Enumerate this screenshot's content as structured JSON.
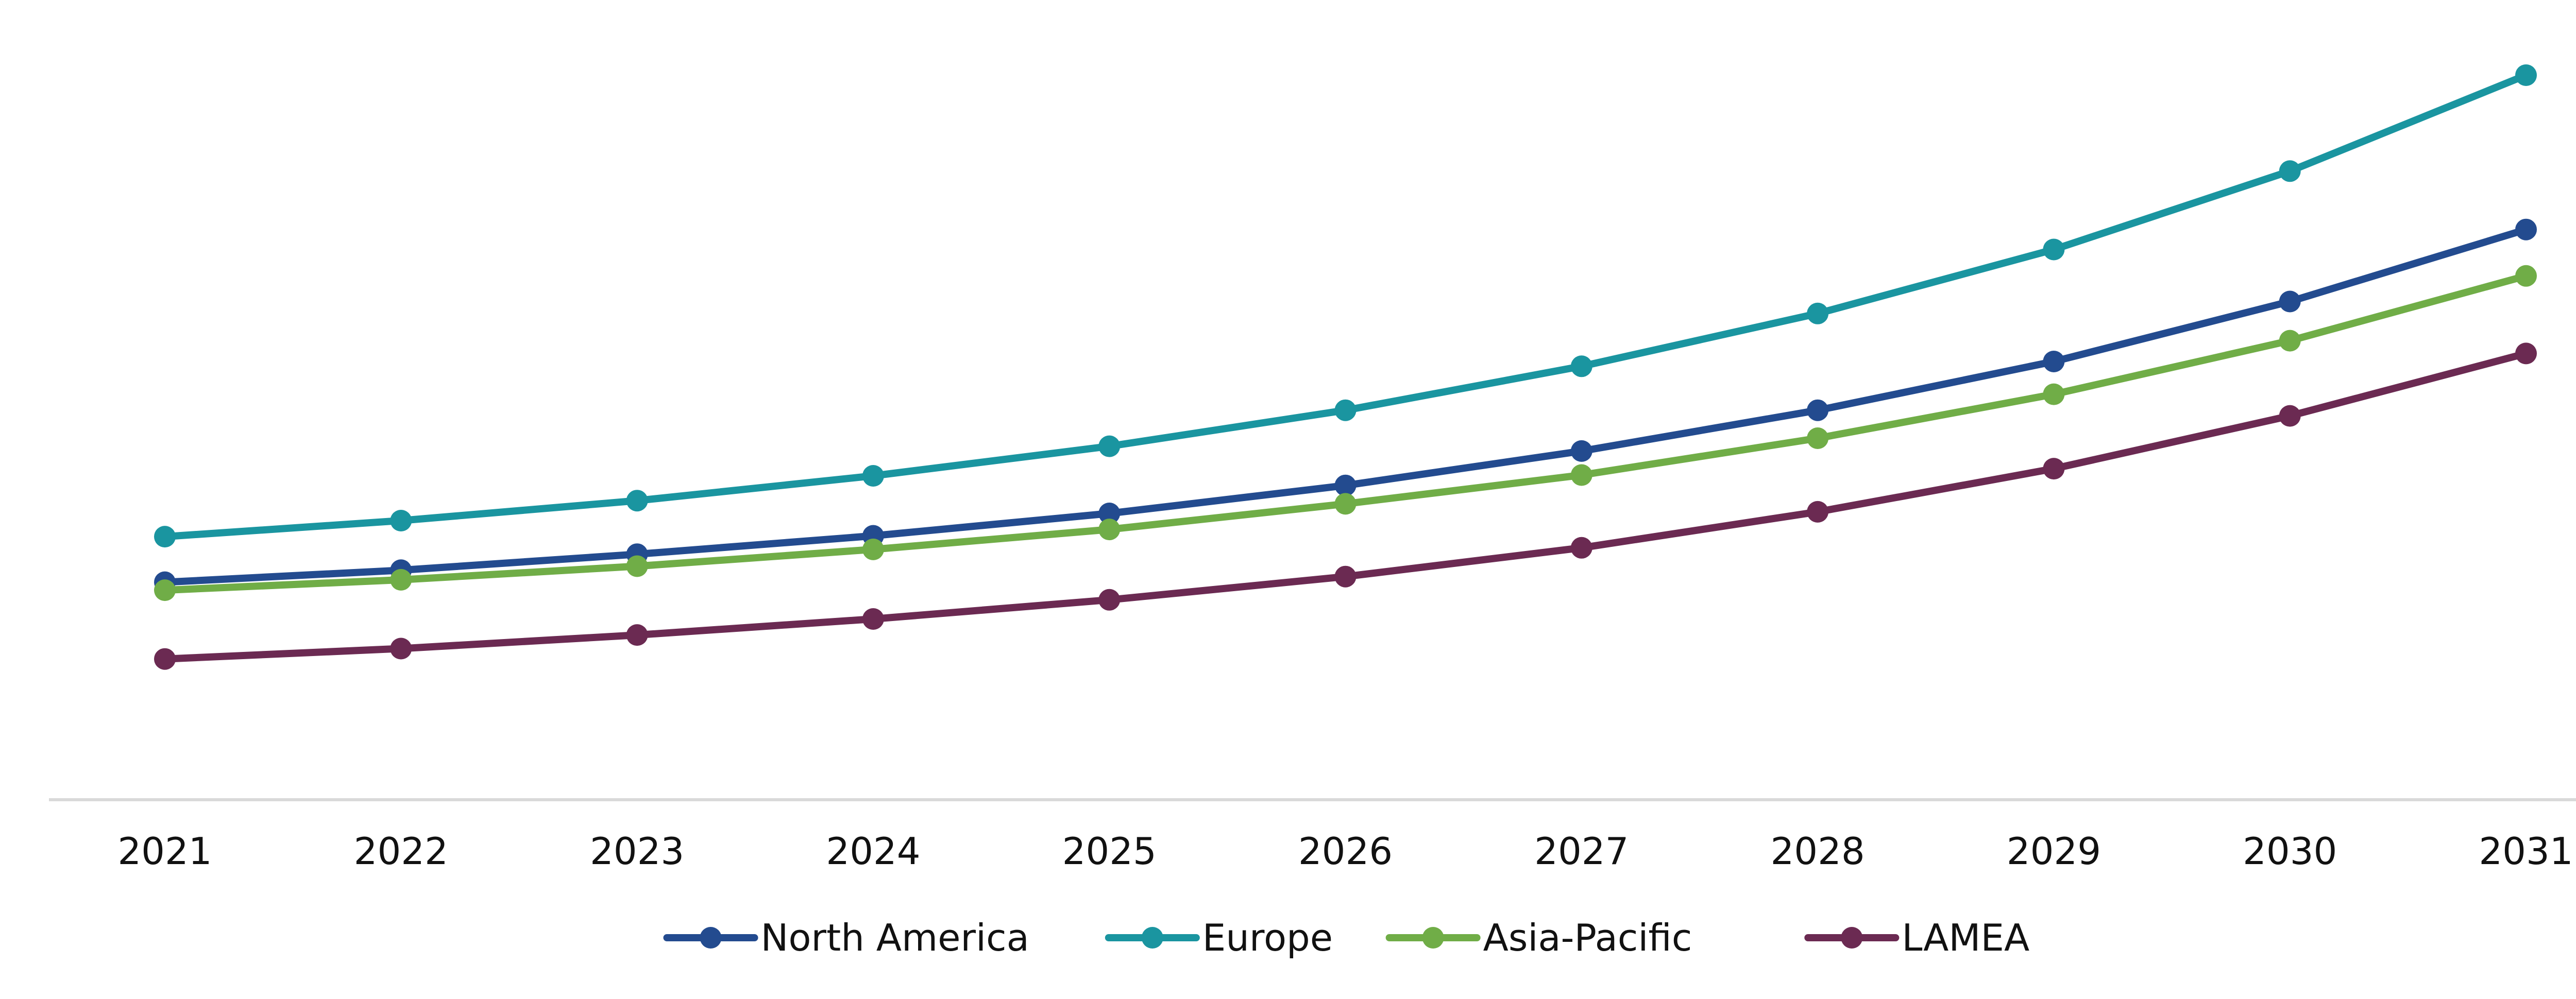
{
  "chart_data": {
    "type": "line",
    "title": "",
    "xlabel": "",
    "ylabel": "",
    "categories": [
      "2021",
      "2022",
      "2023",
      "2024",
      "2025",
      "2026",
      "2027",
      "2028",
      "2029",
      "2030",
      "2031"
    ],
    "ylim": [
      0,
      100
    ],
    "grid": false,
    "legend_position": "bottom",
    "series": [
      {
        "name": "North America",
        "color": "#234b8f",
        "values": [
          27.2,
          28.7,
          30.7,
          33.0,
          35.8,
          39.3,
          43.6,
          48.7,
          54.8,
          62.3,
          71.3
        ]
      },
      {
        "name": "Europe",
        "color": "#1a95a0",
        "values": [
          32.9,
          34.9,
          37.4,
          40.5,
          44.2,
          48.7,
          54.2,
          60.8,
          68.8,
          78.6,
          90.6
        ]
      },
      {
        "name": "Asia-Pacific",
        "color": "#70ad47",
        "values": [
          26.2,
          27.5,
          29.2,
          31.3,
          33.8,
          37.0,
          40.6,
          45.2,
          50.7,
          57.4,
          65.5
        ]
      },
      {
        "name": "LAMEA",
        "color": "#6b2a52",
        "values": [
          17.6,
          18.9,
          20.6,
          22.6,
          25.0,
          27.9,
          31.5,
          36.0,
          41.4,
          48.0,
          55.8
        ]
      }
    ]
  }
}
